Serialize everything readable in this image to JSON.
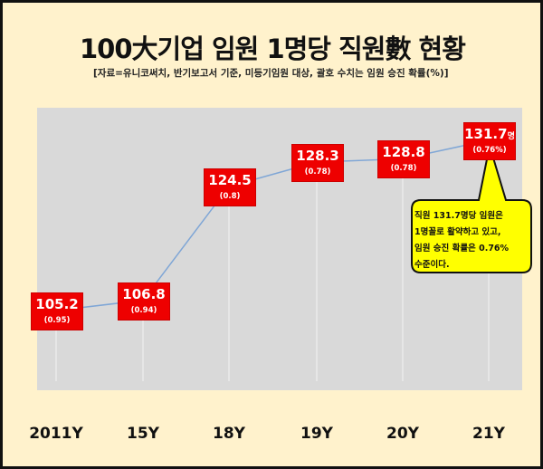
{
  "title": "100大기업 임원 1명당 직원數 현황",
  "subtitle": "[자료=유니코써치, 반기보고서 기준, 미등기임원 대상, 괄호 수치는 임원 승진 확률(%)]",
  "chart_data": {
    "type": "line",
    "categories": [
      "2011Y",
      "15Y",
      "18Y",
      "19Y",
      "20Y",
      "21Y"
    ],
    "values": [
      105.2,
      106.8,
      124.5,
      128.3,
      128.8,
      131.7
    ],
    "value_labels": [
      "105.2",
      "106.8",
      "124.5",
      "128.3",
      "128.8",
      "131.7"
    ],
    "last_value_unit": "명",
    "rate_labels": [
      "(0.95)",
      "(0.94)",
      "(0.8)",
      "(0.78)",
      "(0.78)",
      "(0.76%)"
    ],
    "grid": false,
    "colors": {
      "line": "#7fa6d6",
      "label_box": "#ee0000",
      "plot_bg": "#d9d9d9",
      "page_bg": "#fff2cc",
      "callout": "#ffff00"
    },
    "annotation": [
      "직원 131.7명당 임원은",
      "1명꼴로 활약하고 있고,",
      "임원 승진 확률은 0.76%",
      "수준이다."
    ]
  }
}
